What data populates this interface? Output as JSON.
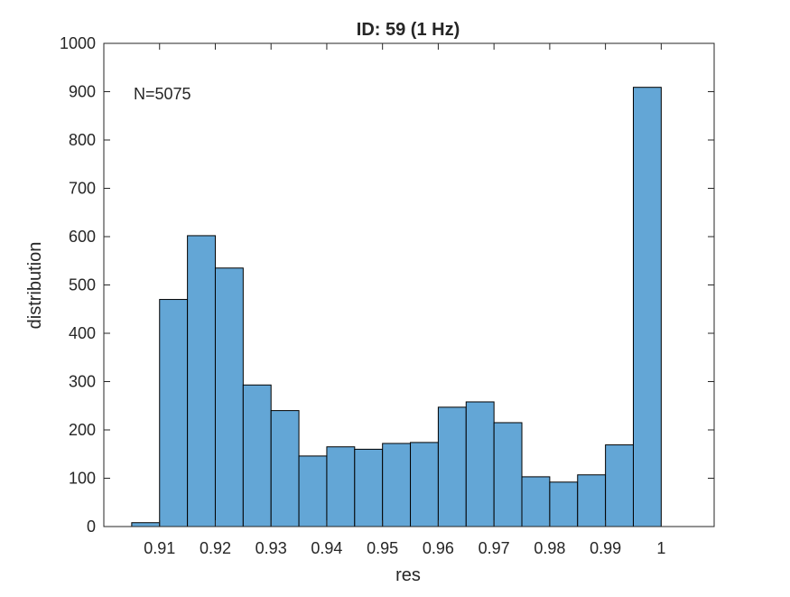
{
  "chart_data": {
    "type": "bar",
    "title": "ID: 59 (1 Hz)",
    "xlabel": "res",
    "ylabel": "distribution",
    "annotation": "N=5075",
    "xlim": [
      0.9,
      1.0095
    ],
    "ylim": [
      0,
      1000
    ],
    "xticks": [
      0.91,
      0.92,
      0.93,
      0.94,
      0.95,
      0.96,
      0.97,
      0.98,
      0.99,
      1
    ],
    "xtick_labels": [
      "0.91",
      "0.92",
      "0.93",
      "0.94",
      "0.95",
      "0.96",
      "0.97",
      "0.98",
      "0.99",
      "1"
    ],
    "yticks": [
      0,
      100,
      200,
      300,
      400,
      500,
      600,
      700,
      800,
      900,
      1000
    ],
    "ytick_labels": [
      "0",
      "100",
      "200",
      "300",
      "400",
      "500",
      "600",
      "700",
      "800",
      "900",
      "1000"
    ],
    "bin_edges": [
      0.905,
      0.91,
      0.915,
      0.92,
      0.925,
      0.93,
      0.935,
      0.94,
      0.945,
      0.95,
      0.955,
      0.96,
      0.965,
      0.97,
      0.975,
      0.98,
      0.985,
      0.99,
      0.995,
      1.0
    ],
    "values": [
      8,
      470,
      602,
      535,
      293,
      240,
      146,
      165,
      160,
      172,
      174,
      247,
      258,
      215,
      103,
      92,
      107,
      169,
      909
    ],
    "bar_color": "#63a6d6",
    "bar_edge_color": "#000000",
    "grid": false,
    "box": true
  }
}
